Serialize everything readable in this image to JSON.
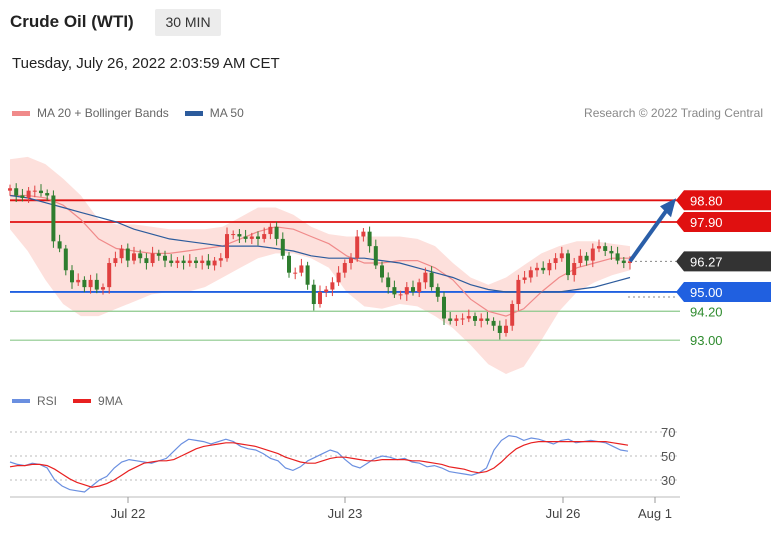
{
  "header": {
    "title": "Crude Oil (WTI)",
    "timeframe": "30 MIN"
  },
  "timestamp": "Tuesday, July 26, 2022 2:03:59 AM CET",
  "legend": {
    "ma20_label": "MA 20 + Bollinger Bands",
    "ma50_label": "MA 50",
    "ma20_color": "#f08a8a",
    "ma50_color": "#2c5b9c"
  },
  "research_credit": "Research © 2022 Trading Central",
  "rsi_legend": {
    "rsi_label": "RSI",
    "ma_label": "9MA",
    "rsi_color": "#6a8fe0",
    "ma_color": "#e82020"
  },
  "colors": {
    "resistance": "#e01010",
    "support_blue": "#2060e0",
    "support_green": "#8cc98c",
    "bull_candle": "#e04040",
    "bear_candle": "#2e7d2e",
    "last_price_bg": "#333333",
    "band_fill": "#fde0dc",
    "arrow": "#2a5ea8"
  },
  "chart_data": [
    {
      "type": "line",
      "title": "Crude Oil (WTI) 30 MIN",
      "x_ticks": [
        "Jul 22",
        "Jul 23",
        "Jul 26",
        "Aug 1"
      ],
      "levels": [
        {
          "label": "98.80",
          "value": 98.8,
          "kind": "resistance"
        },
        {
          "label": "97.90",
          "value": 97.9,
          "kind": "resistance"
        },
        {
          "label": "95.00",
          "value": 95.0,
          "kind": "support-blue"
        },
        {
          "label": "94.20",
          "value": 94.2,
          "kind": "support-green"
        },
        {
          "label": "93.00",
          "value": 93.0,
          "kind": "support-green"
        }
      ],
      "last_price": {
        "label": "96.27",
        "value": 96.27
      },
      "price_range": [
        91.35,
        101.3
      ],
      "series": [
        {
          "name": "MA 20 + Bollinger Bands",
          "values": [
            99.0,
            99.0,
            98.9,
            98.6,
            98.0,
            97.2,
            96.8,
            96.7,
            96.6,
            96.6,
            96.7,
            96.8,
            96.9,
            97.2,
            97.5,
            97.7,
            97.6,
            97.3,
            97.0,
            96.5,
            96.2,
            96.2,
            96.3,
            96.3,
            96.0,
            95.5,
            94.7,
            94.2,
            94.0,
            94.3,
            95.0,
            95.6,
            96.0,
            96.2,
            96.4,
            96.4
          ]
        },
        {
          "name": "MA 50",
          "values": [
            99.0,
            98.9,
            98.7,
            98.5,
            98.3,
            98.1,
            97.9,
            97.6,
            97.4,
            97.2,
            97.1,
            97.0,
            96.9,
            96.9,
            96.9,
            96.8,
            96.7,
            96.5,
            96.4,
            96.4,
            96.4,
            96.3,
            96.2,
            96.0,
            95.8,
            95.6,
            95.3,
            95.1,
            95.0,
            95.0,
            95.0,
            95.0,
            95.1,
            95.2,
            95.4,
            95.6
          ]
        }
      ],
      "bands": {
        "upper": [
          100.5,
          100.6,
          100.3,
          99.7,
          99.0,
          98.0,
          97.8,
          97.8,
          97.7,
          97.6,
          97.6,
          97.6,
          97.7,
          98.1,
          98.5,
          98.5,
          98.2,
          97.7,
          97.4,
          97.3,
          97.3,
          97.3,
          97.3,
          97.2,
          96.9,
          96.2,
          95.6,
          95.3,
          95.6,
          96.1,
          96.6,
          96.9,
          97.1,
          97.1,
          97.0,
          96.9
        ],
        "lower": [
          97.6,
          96.7,
          95.5,
          94.5,
          94.0,
          94.0,
          94.3,
          94.6,
          94.9,
          95.0,
          95.0,
          95.2,
          95.6,
          96.0,
          96.4,
          96.6,
          96.6,
          96.4,
          96.0,
          95.0,
          94.4,
          94.3,
          94.5,
          94.4,
          94.0,
          93.5,
          92.8,
          92.0,
          91.6,
          91.9,
          93.0,
          94.2,
          95.0,
          95.4,
          95.7,
          95.9
        ]
      },
      "closes": [
        99.3,
        99.0,
        98.9,
        99.2,
        99.2,
        99.1,
        99.0,
        97.1,
        96.8,
        95.9,
        95.4,
        95.5,
        95.2,
        95.5,
        95.1,
        95.2,
        96.2,
        96.4,
        96.8,
        96.3,
        96.6,
        96.4,
        96.2,
        96.6,
        96.5,
        96.3,
        96.2,
        96.3,
        96.2,
        96.3,
        96.2,
        96.3,
        96.1,
        96.3,
        96.4,
        97.4,
        97.4,
        97.3,
        97.2,
        97.3,
        97.2,
        97.4,
        97.7,
        97.2,
        96.5,
        95.8,
        95.8,
        96.1,
        95.3,
        94.5,
        95.0,
        95.1,
        95.4,
        95.8,
        96.2,
        96.4,
        97.3,
        97.5,
        96.9,
        96.1,
        95.6,
        95.2,
        94.9,
        94.9,
        95.2,
        95.0,
        95.4,
        95.8,
        95.2,
        94.8,
        93.9,
        93.8,
        93.9,
        93.9,
        94.0,
        93.8,
        93.9,
        93.8,
        93.6,
        93.3,
        93.6,
        94.5,
        95.5,
        95.6,
        95.9,
        96.0,
        95.9,
        96.2,
        96.4,
        96.6,
        95.7,
        96.2,
        96.5,
        96.3,
        96.8,
        96.9,
        96.7,
        96.6,
        96.3,
        96.2,
        96.27
      ]
    },
    {
      "type": "line",
      "title": "RSI",
      "y_ticks": [
        70,
        50,
        30
      ],
      "ylim": [
        20,
        80
      ],
      "series": [
        {
          "name": "RSI",
          "values": [
            45,
            43,
            42,
            44,
            43,
            40,
            30,
            25,
            22,
            21,
            20,
            25,
            30,
            33,
            40,
            45,
            47,
            46,
            45,
            44,
            46,
            48,
            54,
            60,
            64,
            63,
            62,
            60,
            62,
            64,
            62,
            58,
            56,
            55,
            52,
            48,
            46,
            40,
            38,
            41,
            46,
            49,
            52,
            55,
            53,
            47,
            42,
            40,
            44,
            48,
            50,
            49,
            47,
            48,
            45,
            44,
            41,
            42,
            40,
            37,
            36,
            35,
            34,
            36,
            40,
            55,
            63,
            67,
            66,
            63,
            65,
            64,
            62,
            60,
            63,
            64,
            61,
            62,
            63,
            62,
            61,
            58,
            55,
            54
          ]
        },
        {
          "name": "9MA",
          "values": [
            41,
            42,
            42,
            43,
            43,
            42,
            39,
            35,
            31,
            28,
            26,
            24,
            25,
            27,
            30,
            34,
            38,
            41,
            44,
            45,
            46,
            46,
            47,
            50,
            53,
            56,
            58,
            59,
            60,
            61,
            61,
            60,
            59,
            58,
            56,
            54,
            52,
            49,
            47,
            45,
            44,
            44,
            46,
            48,
            49,
            49,
            48,
            47,
            46,
            46,
            47,
            47,
            47,
            47,
            46,
            46,
            45,
            44,
            43,
            41,
            40,
            39,
            37,
            36,
            37,
            40,
            45,
            51,
            56,
            59,
            61,
            62,
            62,
            62,
            62,
            62,
            62,
            62,
            62,
            62,
            62,
            61,
            60,
            59
          ]
        }
      ]
    }
  ]
}
